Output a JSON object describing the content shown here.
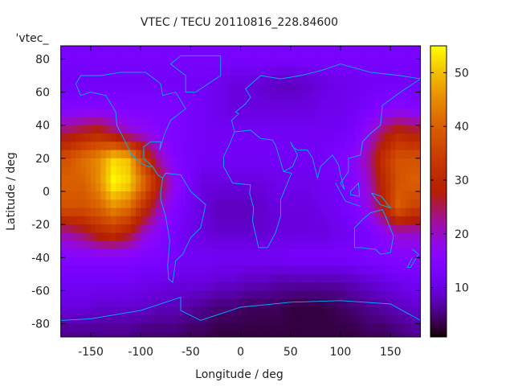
{
  "chart_data": {
    "type": "heatmap",
    "title": "VTEC / TECU 20110816_228.84600",
    "xlabel": "Longitude / deg",
    "ylabel": "Latitude / deg",
    "key_label": "'vtec_",
    "xlim": [
      -180,
      180
    ],
    "ylim": [
      -88,
      88
    ],
    "xticks": [
      -150,
      -100,
      -50,
      0,
      50,
      100,
      150
    ],
    "yticks": [
      -80,
      -60,
      -40,
      -20,
      0,
      20,
      40,
      60,
      80
    ],
    "cbrange": [
      0.8,
      55
    ],
    "cbticks": [
      10,
      20,
      30,
      40,
      50
    ],
    "palette": "rgbformulae 7,5,15",
    "coastline_color": "#00b4ff",
    "grid_lon": [
      -172.5,
      -157.5,
      -142.5,
      -127.5,
      -112.5,
      -97.5,
      -82.5,
      -67.5,
      -52.5,
      -37.5,
      -22.5,
      -7.5,
      7.5,
      22.5,
      37.5,
      52.5,
      67.5,
      82.5,
      97.5,
      112.5,
      127.5,
      142.5,
      157.5,
      172.5
    ],
    "grid_lat": [
      80,
      65,
      50,
      35,
      20,
      5,
      -10,
      -25,
      -40,
      -55,
      -70,
      -85
    ],
    "values": [
      [
        13,
        13,
        13,
        13,
        13,
        13,
        13,
        13,
        13,
        13,
        13,
        13,
        13,
        13,
        13,
        13,
        13,
        13,
        13,
        13,
        13,
        13,
        13,
        13
      ],
      [
        12,
        12,
        12,
        12,
        12,
        12,
        12,
        12,
        12,
        12,
        11,
        10,
        10,
        9,
        8,
        8,
        9,
        10,
        11,
        11,
        12,
        12,
        12,
        12
      ],
      [
        15,
        15,
        15,
        15,
        14,
        14,
        14,
        14,
        13,
        12,
        11,
        10,
        10,
        10,
        10,
        10,
        10,
        11,
        11,
        12,
        13,
        15,
        16,
        15
      ],
      [
        25,
        28,
        30,
        25,
        20,
        18,
        16,
        14,
        13,
        12,
        12,
        12,
        12,
        12,
        12,
        12,
        12,
        12,
        12,
        13,
        18,
        25,
        30,
        28
      ],
      [
        38,
        42,
        45,
        52,
        50,
        35,
        22,
        15,
        13,
        12,
        12,
        12,
        12,
        12,
        12,
        12,
        12,
        12,
        14,
        16,
        22,
        32,
        38,
        38
      ],
      [
        40,
        40,
        45,
        55,
        52,
        42,
        30,
        18,
        13,
        10,
        10,
        10,
        10,
        10,
        11,
        11,
        11,
        12,
        12,
        15,
        20,
        30,
        38,
        40
      ],
      [
        38,
        38,
        40,
        45,
        42,
        32,
        22,
        15,
        12,
        10,
        8,
        8,
        8,
        9,
        10,
        10,
        10,
        11,
        12,
        14,
        18,
        28,
        40,
        35
      ],
      [
        22,
        25,
        30,
        32,
        28,
        20,
        16,
        13,
        11,
        10,
        9,
        9,
        9,
        9,
        10,
        10,
        10,
        10,
        11,
        12,
        13,
        16,
        20,
        20
      ],
      [
        15,
        15,
        15,
        15,
        15,
        14,
        14,
        13,
        12,
        12,
        12,
        12,
        12,
        12,
        12,
        13,
        13,
        13,
        13,
        13,
        14,
        14,
        15,
        15
      ],
      [
        12,
        12,
        12,
        12,
        12,
        11,
        11,
        10,
        10,
        10,
        9,
        9,
        8,
        8,
        7,
        7,
        7,
        7,
        7,
        8,
        9,
        10,
        11,
        12
      ],
      [
        10,
        10,
        9,
        9,
        9,
        9,
        8,
        8,
        7,
        6,
        5,
        5,
        4,
        4,
        4,
        3,
        3,
        3,
        4,
        5,
        6,
        7,
        8,
        9
      ],
      [
        6,
        6,
        6,
        6,
        6,
        5,
        5,
        5,
        4,
        4,
        3,
        3,
        3,
        3,
        3,
        3,
        3,
        3,
        3,
        3,
        4,
        4,
        5,
        6
      ]
    ],
    "coastlines": [
      [
        [
          -165,
          65
        ],
        [
          -160,
          70
        ],
        [
          -140,
          70
        ],
        [
          -120,
          72
        ],
        [
          -95,
          72
        ],
        [
          -80,
          65
        ],
        [
          -78,
          58
        ],
        [
          -65,
          60
        ],
        [
          -55,
          50
        ],
        [
          -70,
          43
        ],
        [
          -76,
          35
        ],
        [
          -81,
          25
        ],
        [
          -80,
          30
        ],
        [
          -90,
          30
        ],
        [
          -97,
          27
        ],
        [
          -97,
          20
        ],
        [
          -88,
          15
        ],
        [
          -83,
          10
        ],
        [
          -78,
          8
        ],
        [
          -80,
          0
        ],
        [
          -80,
          -5
        ],
        [
          -75,
          -15
        ],
        [
          -71,
          -30
        ],
        [
          -73,
          -45
        ],
        [
          -72,
          -53
        ],
        [
          -68,
          -55
        ],
        [
          -65,
          -42
        ],
        [
          -58,
          -38
        ],
        [
          -50,
          -28
        ],
        [
          -40,
          -22
        ],
        [
          -35,
          -8
        ],
        [
          -50,
          0
        ],
        [
          -60,
          10
        ],
        [
          -75,
          11
        ],
        [
          -78,
          8
        ]
      ],
      [
        [
          -165,
          65
        ],
        [
          -160,
          58
        ],
        [
          -150,
          60
        ],
        [
          -135,
          58
        ],
        [
          -125,
          48
        ],
        [
          -124,
          40
        ],
        [
          -117,
          32
        ],
        [
          -110,
          23
        ],
        [
          -105,
          20
        ],
        [
          -97,
          16
        ],
        [
          -92,
          15
        ],
        [
          -88,
          15
        ]
      ],
      [
        [
          -55,
          60
        ],
        [
          -45,
          60
        ],
        [
          -20,
          70
        ],
        [
          -20,
          82
        ],
        [
          -60,
          82
        ],
        [
          -70,
          77
        ],
        [
          -55,
          70
        ],
        [
          -55,
          60
        ]
      ],
      [
        [
          -17,
          15
        ],
        [
          -17,
          21
        ],
        [
          -10,
          30
        ],
        [
          -6,
          36
        ],
        [
          -9,
          43
        ],
        [
          -2,
          47
        ],
        [
          -5,
          48
        ],
        [
          5,
          53
        ],
        [
          10,
          57
        ],
        [
          5,
          62
        ],
        [
          20,
          70
        ],
        [
          40,
          68
        ],
        [
          60,
          70
        ],
        [
          80,
          73
        ],
        [
          100,
          77
        ],
        [
          130,
          72
        ],
        [
          160,
          70
        ],
        [
          180,
          68
        ]
      ],
      [
        [
          -17,
          15
        ],
        [
          -8,
          5
        ],
        [
          10,
          4
        ],
        [
          9,
          -1
        ],
        [
          13,
          -10
        ],
        [
          12,
          -18
        ],
        [
          18,
          -34
        ],
        [
          27,
          -34
        ],
        [
          35,
          -25
        ],
        [
          40,
          -15
        ],
        [
          40,
          -5
        ],
        [
          51,
          11
        ],
        [
          43,
          12
        ],
        [
          35,
          28
        ],
        [
          32,
          31
        ],
        [
          20,
          32
        ],
        [
          10,
          37
        ],
        [
          -6,
          36
        ]
      ],
      [
        [
          180,
          68
        ],
        [
          160,
          60
        ],
        [
          142,
          52
        ],
        [
          140,
          40
        ],
        [
          130,
          35
        ],
        [
          122,
          30
        ],
        [
          120,
          22
        ],
        [
          108,
          20
        ],
        [
          108,
          12
        ],
        [
          100,
          5
        ],
        [
          104,
          1
        ],
        [
          100,
          10
        ],
        [
          98,
          16
        ],
        [
          92,
          22
        ],
        [
          80,
          15
        ],
        [
          77,
          8
        ],
        [
          72,
          20
        ],
        [
          67,
          25
        ],
        [
          57,
          25
        ],
        [
          52,
          27
        ],
        [
          50,
          30
        ],
        [
          57,
          22
        ],
        [
          52,
          15
        ],
        [
          43,
          12
        ]
      ],
      [
        [
          114,
          -22
        ],
        [
          114,
          -34
        ],
        [
          120,
          -34
        ],
        [
          135,
          -35
        ],
        [
          140,
          -38
        ],
        [
          150,
          -37
        ],
        [
          153,
          -27
        ],
        [
          145,
          -15
        ],
        [
          142,
          -11
        ],
        [
          136,
          -12
        ],
        [
          130,
          -13
        ],
        [
          122,
          -17
        ],
        [
          114,
          -22
        ]
      ],
      [
        [
          -180,
          -78
        ],
        [
          -150,
          -77
        ],
        [
          -100,
          -72
        ],
        [
          -60,
          -64
        ],
        [
          -60,
          -72
        ],
        [
          -40,
          -78
        ],
        [
          0,
          -70
        ],
        [
          50,
          -67
        ],
        [
          100,
          -66
        ],
        [
          150,
          -68
        ],
        [
          180,
          -78
        ]
      ],
      [
        [
          95,
          5
        ],
        [
          105,
          -6
        ],
        [
          115,
          -8
        ],
        [
          120,
          -9
        ]
      ],
      [
        [
          110,
          0
        ],
        [
          118,
          5
        ],
        [
          119,
          -3
        ],
        [
          110,
          -2
        ],
        [
          110,
          0
        ]
      ],
      [
        [
          131,
          -1
        ],
        [
          141,
          -3
        ],
        [
          150,
          -10
        ],
        [
          140,
          -8
        ],
        [
          131,
          -1
        ]
      ],
      [
        [
          172,
          -35
        ],
        [
          178,
          -38
        ],
        [
          170,
          -46
        ],
        [
          167,
          -46
        ],
        [
          172,
          -40
        ]
      ]
    ]
  }
}
